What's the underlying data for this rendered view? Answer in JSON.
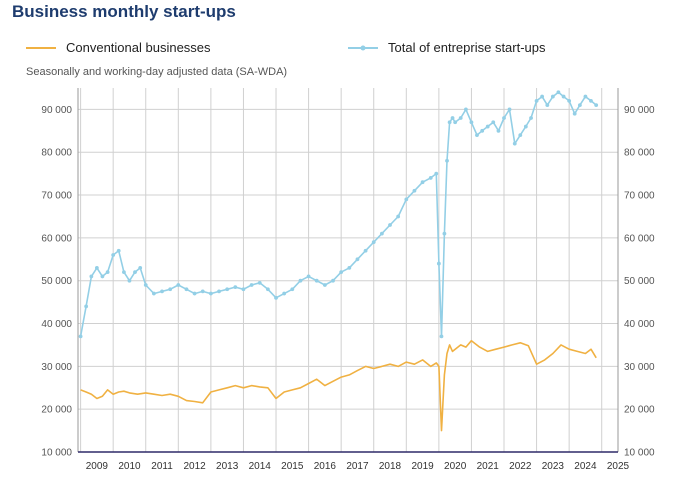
{
  "header": {
    "title": "Business monthly start-ups",
    "subtitle": "Seasonally and working-day adjusted data (SA-WDA)"
  },
  "colors": {
    "conventional": "#f0b142",
    "total": "#93cfe6",
    "grid": "#d0d0d0",
    "axis": "#2e2a68",
    "title": "#1e3c6e"
  },
  "chart_data": {
    "type": "line",
    "title": "Business monthly start-ups",
    "subtitle": "Seasonally and working-day adjusted data (SA-WDA)",
    "ylim": [
      10000,
      95000
    ],
    "yticks": [
      10000,
      20000,
      30000,
      40000,
      50000,
      60000,
      70000,
      80000,
      90000
    ],
    "ytick_labels": [
      "10 000",
      "20 000",
      "30 000",
      "40 000",
      "50 000",
      "60 000",
      "70 000",
      "80 000",
      "90 000"
    ],
    "x_range": [
      2008.92,
      2025.5
    ],
    "x_tick_labels": [
      "2009",
      "2010",
      "2011",
      "2012",
      "2013",
      "2014",
      "2015",
      "2016",
      "2017",
      "2018",
      "2019",
      "2020",
      "2021",
      "2022",
      "2023",
      "2024",
      "2025"
    ],
    "legend": [
      "Conventional businesses",
      "Total of entreprise start-ups"
    ],
    "series": [
      {
        "name": "Conventional businesses",
        "markers": false,
        "x": [
          2009.0,
          2009.17,
          2009.33,
          2009.5,
          2009.67,
          2009.83,
          2010.0,
          2010.17,
          2010.33,
          2010.5,
          2010.75,
          2011.0,
          2011.25,
          2011.5,
          2011.75,
          2012.0,
          2012.25,
          2012.5,
          2012.75,
          2013.0,
          2013.25,
          2013.5,
          2013.75,
          2014.0,
          2014.25,
          2014.5,
          2014.75,
          2015.0,
          2015.25,
          2015.5,
          2015.75,
          2016.0,
          2016.25,
          2016.5,
          2016.75,
          2017.0,
          2017.25,
          2017.5,
          2017.75,
          2018.0,
          2018.25,
          2018.5,
          2018.75,
          2019.0,
          2019.25,
          2019.5,
          2019.75,
          2019.92,
          2020.0,
          2020.08,
          2020.17,
          2020.25,
          2020.33,
          2020.42,
          2020.5,
          2020.67,
          2020.83,
          2021.0,
          2021.25,
          2021.5,
          2021.75,
          2022.0,
          2022.25,
          2022.5,
          2022.75,
          2023.0,
          2023.25,
          2023.5,
          2023.75,
          2024.0,
          2024.25,
          2024.5,
          2024.67,
          2024.83
        ],
        "values": [
          24500,
          24000,
          23500,
          22500,
          23000,
          24500,
          23500,
          24000,
          24200,
          23800,
          23500,
          23800,
          23500,
          23200,
          23500,
          23000,
          22000,
          21800,
          21500,
          24000,
          24500,
          25000,
          25500,
          25000,
          25500,
          25200,
          25000,
          22500,
          24000,
          24500,
          25000,
          26000,
          27000,
          25500,
          26500,
          27500,
          28000,
          29000,
          30000,
          29500,
          30000,
          30500,
          30000,
          31000,
          30500,
          31500,
          30000,
          30800,
          30000,
          15000,
          28000,
          33000,
          35000,
          33500,
          34000,
          35000,
          34500,
          36000,
          34500,
          33500,
          34000,
          34500,
          35000,
          35500,
          34800,
          30500,
          31500,
          33000,
          35000,
          34000,
          33500,
          33000,
          34000,
          32000
        ]
      },
      {
        "name": "Total of entreprise start-ups",
        "markers": true,
        "x": [
          2009.0,
          2009.17,
          2009.33,
          2009.5,
          2009.67,
          2009.83,
          2010.0,
          2010.17,
          2010.33,
          2010.5,
          2010.67,
          2010.83,
          2011.0,
          2011.25,
          2011.5,
          2011.75,
          2012.0,
          2012.25,
          2012.5,
          2012.75,
          2013.0,
          2013.25,
          2013.5,
          2013.75,
          2014.0,
          2014.25,
          2014.5,
          2014.75,
          2015.0,
          2015.25,
          2015.5,
          2015.75,
          2016.0,
          2016.25,
          2016.5,
          2016.75,
          2017.0,
          2017.25,
          2017.5,
          2017.75,
          2018.0,
          2018.25,
          2018.5,
          2018.75,
          2019.0,
          2019.25,
          2019.5,
          2019.75,
          2019.92,
          2020.0,
          2020.08,
          2020.17,
          2020.25,
          2020.33,
          2020.42,
          2020.5,
          2020.67,
          2020.83,
          2021.0,
          2021.17,
          2021.33,
          2021.5,
          2021.67,
          2021.83,
          2022.0,
          2022.17,
          2022.33,
          2022.5,
          2022.67,
          2022.83,
          2023.0,
          2023.17,
          2023.33,
          2023.5,
          2023.67,
          2023.83,
          2024.0,
          2024.17,
          2024.33,
          2024.5,
          2024.67,
          2024.83
        ],
        "values": [
          37000,
          44000,
          51000,
          53000,
          51000,
          52000,
          56000,
          57000,
          52000,
          50000,
          52000,
          53000,
          49000,
          47000,
          47500,
          48000,
          49000,
          48000,
          47000,
          47500,
          47000,
          47500,
          48000,
          48500,
          48000,
          49000,
          49500,
          48000,
          46000,
          47000,
          48000,
          50000,
          51000,
          50000,
          49000,
          50000,
          52000,
          53000,
          55000,
          57000,
          59000,
          61000,
          63000,
          65000,
          69000,
          71000,
          73000,
          74000,
          75000,
          54000,
          37000,
          61000,
          78000,
          87000,
          88000,
          87000,
          88000,
          90000,
          87000,
          84000,
          85000,
          86000,
          87000,
          85000,
          88000,
          90000,
          82000,
          84000,
          86000,
          88000,
          92000,
          93000,
          91000,
          93000,
          94000,
          93000,
          92000,
          89000,
          91000,
          93000,
          92000,
          91000
        ]
      }
    ]
  }
}
